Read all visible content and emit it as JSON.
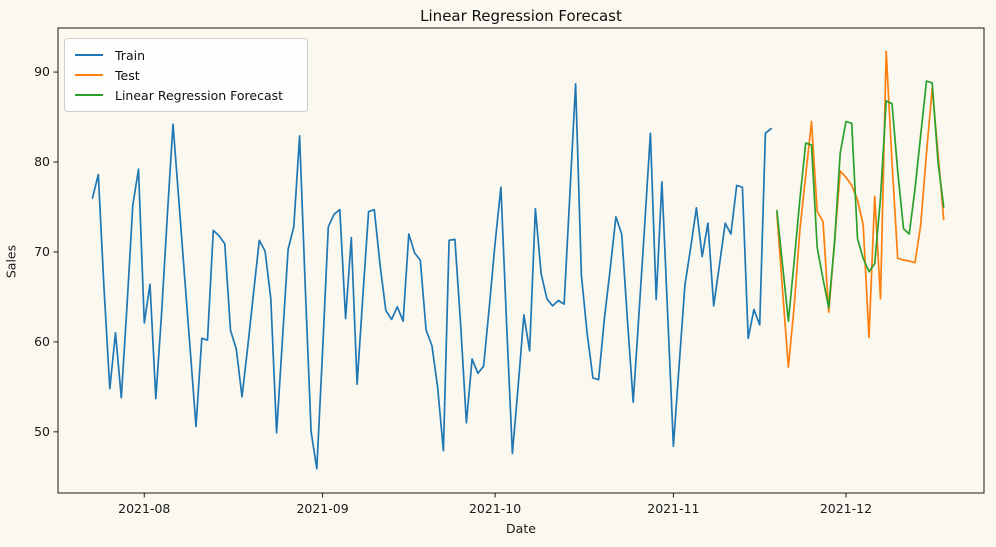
{
  "figure": {
    "background_color": "#faf8ef",
    "text_color": "#111111"
  },
  "chart_data": {
    "type": "line",
    "title": "Linear Regression Forecast",
    "xlabel": "Date",
    "ylabel": "Sales",
    "legend_position": "upper-left",
    "grid": false,
    "x_start_date": "2021-07-23",
    "x_tick_labels": [
      "2021-08",
      "2021-09",
      "2021-10",
      "2021-11",
      "2021-12"
    ],
    "x_tick_day_index": [
      9,
      40,
      70,
      101,
      131
    ],
    "y_tick_labels": [
      "50",
      "60",
      "70",
      "80",
      "90"
    ],
    "y_ticks": [
      50,
      60,
      70,
      80,
      90
    ],
    "ylim": [
      43.2,
      94.9
    ],
    "xlim_day_index": [
      -6,
      155
    ],
    "series": [
      {
        "name": "Train",
        "color": "#1f77b4",
        "start_day_index": 0,
        "date_range": "2021-07-23 to 2021-11-18",
        "values": [
          76.0,
          78.6,
          66.0,
          54.8,
          61.0,
          53.8,
          64.0,
          75.2,
          79.2,
          62.1,
          66.4,
          53.7,
          63.0,
          74.0,
          84.2,
          75.8,
          67.4,
          59.0,
          50.6,
          60.4,
          60.2,
          72.4,
          71.8,
          70.9,
          61.3,
          59.2,
          53.9,
          59.5,
          65.5,
          71.3,
          70.1,
          64.8,
          49.9,
          60.0,
          70.3,
          72.8,
          82.9,
          66.0,
          50.0,
          45.9,
          59.0,
          72.8,
          74.2,
          74.7,
          62.6,
          71.6,
          55.3,
          65.0,
          74.5,
          74.7,
          68.5,
          63.5,
          62.5,
          63.9,
          62.3,
          72.0,
          69.9,
          69.1,
          61.3,
          59.6,
          55.0,
          47.9,
          71.3,
          71.4,
          62.0,
          51.0,
          58.1,
          56.5,
          57.3,
          64.0,
          71.0,
          77.2,
          62.0,
          47.6,
          55.0,
          63.0,
          59.0,
          74.8,
          67.6,
          64.8,
          64.0,
          64.6,
          64.2,
          76.5,
          88.7,
          67.4,
          61.0,
          56.0,
          55.8,
          62.6,
          68.0,
          73.9,
          72.0,
          62.5,
          53.3,
          63.0,
          73.0,
          83.2,
          64.7,
          77.8,
          63.0,
          48.4,
          57.5,
          66.3,
          70.5,
          74.9,
          69.5,
          73.2,
          64.0,
          68.5,
          73.2,
          72.0,
          77.4,
          77.2,
          60.4,
          63.6,
          61.9,
          83.2,
          83.7
        ]
      },
      {
        "name": "Test",
        "color": "#ff7f0e",
        "start_day_index": 119,
        "date_range": "2021-11-19 to 2021-12-18",
        "values": [
          74.3,
          65.5,
          57.2,
          64.0,
          72.6,
          78.5,
          84.5,
          74.5,
          73.4,
          63.3,
          71.0,
          79.0,
          78.3,
          77.4,
          75.8,
          73.0,
          60.5,
          76.2,
          64.8,
          92.3,
          80.0,
          69.3,
          69.1,
          69.0,
          68.8,
          73.0,
          81.0,
          88.2,
          81.0,
          73.6
        ]
      },
      {
        "name": "Linear Regression Forecast",
        "color": "#2ca02c",
        "start_day_index": 119,
        "date_range": "2021-11-19 to 2021-12-18",
        "values": [
          74.6,
          68.4,
          62.3,
          69.0,
          76.0,
          82.1,
          81.9,
          70.5,
          67.0,
          63.8,
          71.0,
          81.0,
          84.5,
          84.3,
          71.5,
          69.3,
          67.8,
          68.7,
          76.0,
          86.8,
          86.5,
          79.0,
          72.6,
          72.0,
          77.0,
          83.0,
          89.0,
          88.8,
          80.0,
          75.0
        ]
      }
    ]
  }
}
